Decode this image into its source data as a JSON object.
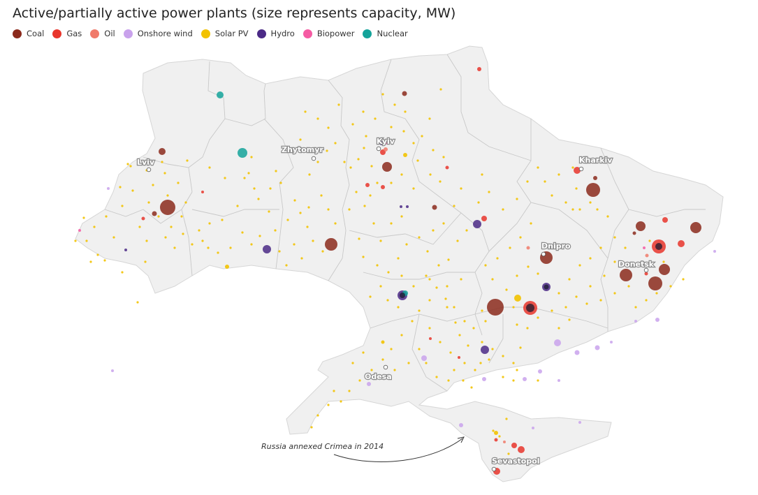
{
  "title": "Active/partially active power plants (size represents capacity, MW)",
  "legend": [
    {
      "key": "coal",
      "label": "Coal",
      "color": "#8b2a1c"
    },
    {
      "key": "gas",
      "label": "Gas",
      "color": "#e8352c"
    },
    {
      "key": "oil",
      "label": "Oil",
      "color": "#f07a6a"
    },
    {
      "key": "wind",
      "label": "Onshore wind",
      "color": "#c9a2ec"
    },
    {
      "key": "solar",
      "label": "Solar PV",
      "color": "#f2c200"
    },
    {
      "key": "hydro",
      "label": "Hydro",
      "color": "#4b2a86"
    },
    {
      "key": "bio",
      "label": "Biopower",
      "color": "#f55ba3"
    },
    {
      "key": "nuclear",
      "label": "Nuclear",
      "color": "#14a39a"
    }
  ],
  "cities": [
    {
      "name": "Kyiv"
    },
    {
      "name": "Zhytomyr"
    },
    {
      "name": "Lviv"
    },
    {
      "name": "Kharkiv"
    },
    {
      "name": "Dnipro"
    },
    {
      "name": "Donetsk"
    },
    {
      "name": "Odesa"
    },
    {
      "name": "Sevastopol"
    }
  ],
  "annotation": {
    "text": "Russia annexed Crimea in 2014"
  },
  "colors": {
    "land": "#f0f0f0",
    "borders": "#c8c8c8"
  }
}
